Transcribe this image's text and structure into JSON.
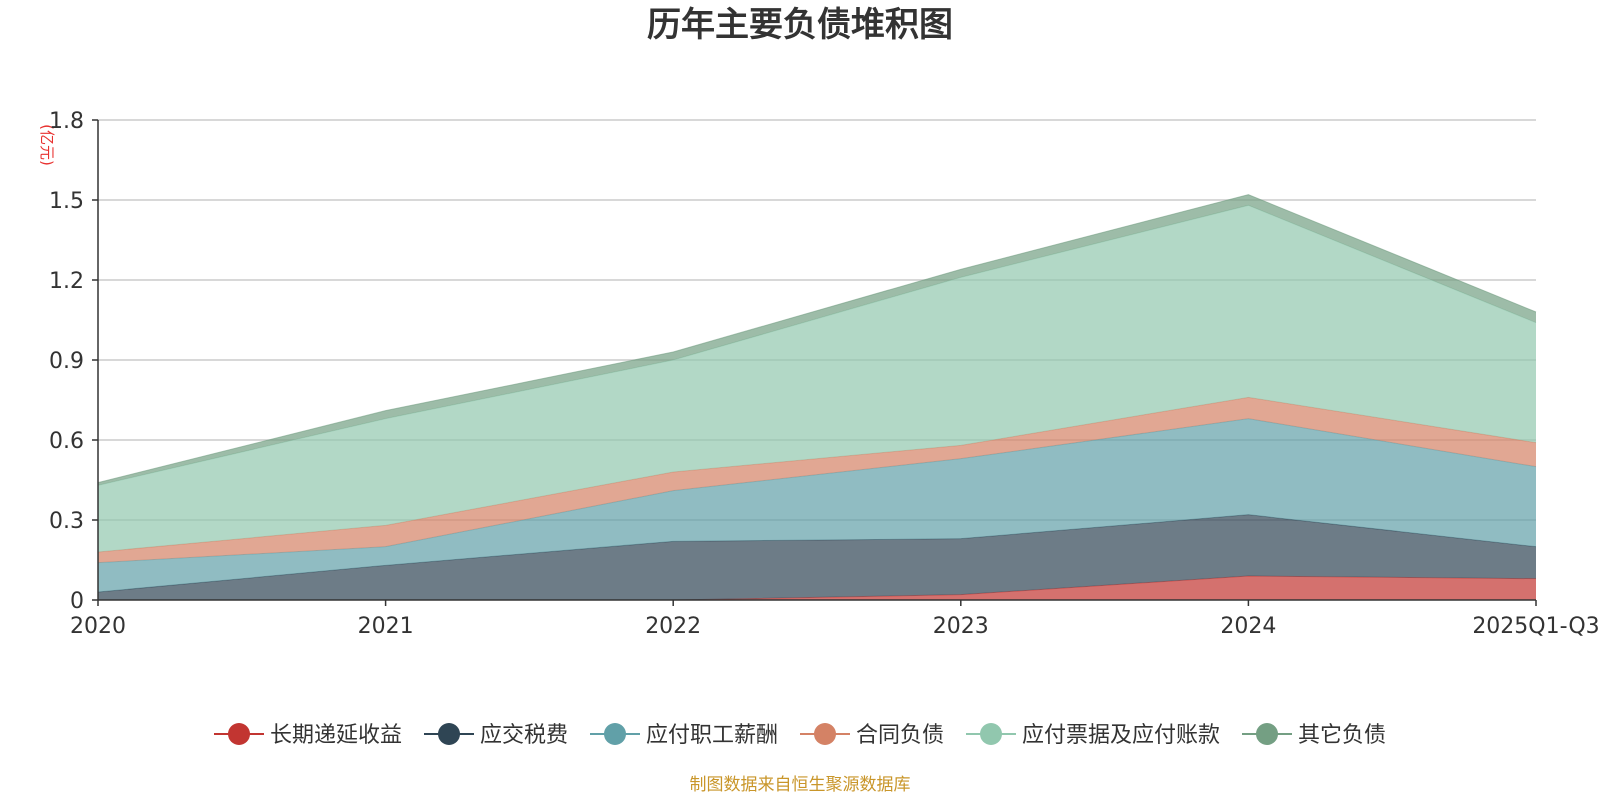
{
  "chart_data": {
    "type": "area",
    "stacked": true,
    "title": "历年主要负债堆积图",
    "unit_label": "(亿元)",
    "categories": [
      "2020",
      "2021",
      "2022",
      "2023",
      "2024",
      "2025Q1-Q3"
    ],
    "ylim": [
      0,
      1.8
    ],
    "yticks": [
      "0",
      "0.3",
      "0.6",
      "0.9",
      "1.2",
      "1.5",
      "1.8"
    ],
    "ytick_values": [
      0,
      0.3,
      0.6,
      0.9,
      1.2,
      1.5,
      1.8
    ],
    "grid": true,
    "legend_position": "bottom",
    "series": [
      {
        "name": "长期递延收益",
        "color": "#c23531",
        "values": [
          0,
          0,
          0,
          0.02,
          0.09,
          0.08
        ]
      },
      {
        "name": "应交税费",
        "color": "#2f4554",
        "values": [
          0.03,
          0.13,
          0.22,
          0.21,
          0.23,
          0.12
        ]
      },
      {
        "name": "应付职工薪酬",
        "color": "#61a0a8",
        "values": [
          0.11,
          0.07,
          0.19,
          0.3,
          0.36,
          0.3
        ]
      },
      {
        "name": "合同负债",
        "color": "#d48265",
        "values": [
          0.04,
          0.08,
          0.07,
          0.05,
          0.08,
          0.09
        ]
      },
      {
        "name": "应付票据及应付账款",
        "color": "#91c7ae",
        "values": [
          0.25,
          0.4,
          0.42,
          0.63,
          0.72,
          0.45
        ]
      },
      {
        "name": "其它负债",
        "color": "#749f83",
        "values": [
          0.01,
          0.03,
          0.03,
          0.03,
          0.04,
          0.04
        ]
      }
    ],
    "source": "制图数据来自恒生聚源数据库"
  }
}
